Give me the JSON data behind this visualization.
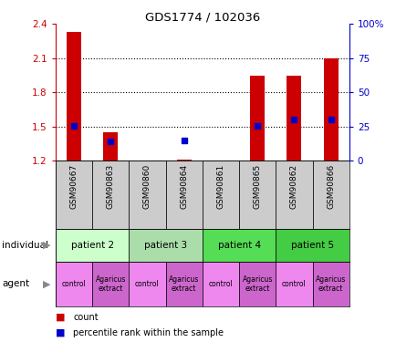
{
  "title": "GDS1774 / 102036",
  "samples": [
    "GSM90667",
    "GSM90863",
    "GSM90860",
    "GSM90864",
    "GSM90861",
    "GSM90865",
    "GSM90862",
    "GSM90866"
  ],
  "red_bars": [
    2.33,
    1.45,
    1.2,
    1.21,
    1.2,
    1.95,
    1.95,
    2.1
  ],
  "blue_dots": [
    1.51,
    1.37,
    null,
    1.38,
    null,
    1.51,
    1.56,
    1.56
  ],
  "ylim": [
    1.2,
    2.4
  ],
  "yticks_left": [
    1.2,
    1.5,
    1.8,
    2.1,
    2.4
  ],
  "yticks_right": [
    0,
    25,
    50,
    75,
    100
  ],
  "ytick_labels_right": [
    "0",
    "25",
    "50",
    "75",
    "100%"
  ],
  "bar_color": "#cc0000",
  "dot_color": "#0000cc",
  "ylabel_left_color": "#cc0000",
  "ylabel_right_color": "#0000cc",
  "dotted_line_values": [
    1.5,
    1.8,
    2.1
  ],
  "sample_bg": "#cccccc",
  "patient_configs": [
    {
      "label": "patient 2",
      "start": 0,
      "end": 2,
      "color": "#ccffcc"
    },
    {
      "label": "patient 3",
      "start": 2,
      "end": 4,
      "color": "#aaddaa"
    },
    {
      "label": "patient 4",
      "start": 4,
      "end": 6,
      "color": "#55dd55"
    },
    {
      "label": "patient 5",
      "start": 6,
      "end": 8,
      "color": "#44cc44"
    }
  ],
  "agents": [
    "control",
    "Agaricus\nextract",
    "control",
    "Agaricus\nextract",
    "control",
    "Agaricus\nextract",
    "control",
    "Agaricus\nextract"
  ],
  "agent_colors": [
    "#ee88ee",
    "#cc66cc",
    "#ee88ee",
    "#cc66cc",
    "#ee88ee",
    "#cc66cc",
    "#ee88ee",
    "#cc66cc"
  ]
}
